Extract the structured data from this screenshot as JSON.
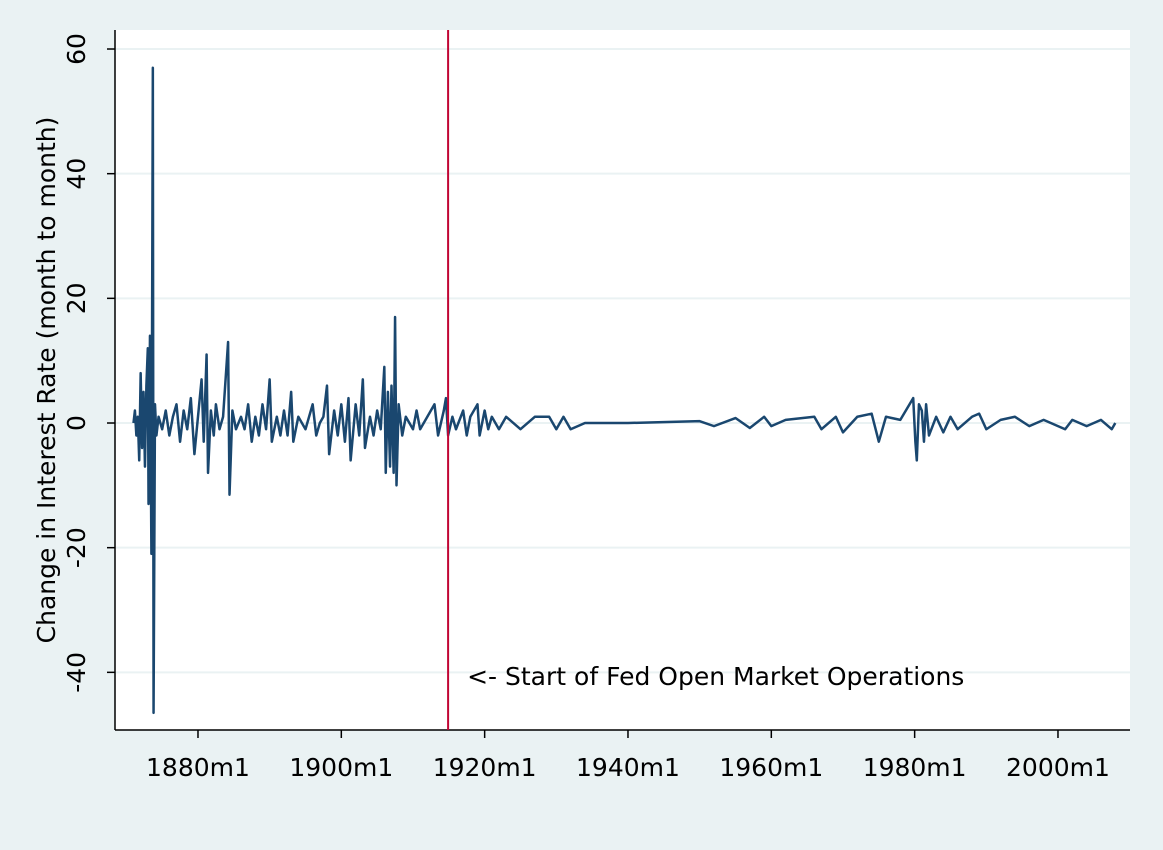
{
  "chart_data": {
    "type": "line",
    "y_label": "Change in Interest Rate (month to month)",
    "annotation": "<- Start of Fed Open Market Operations",
    "xline": 1914.9,
    "xline_color": "#c10534",
    "color": "#1a476f",
    "grid": true,
    "xlim": [
      1868.42,
      2010.05
    ],
    "ylim": [
      -49.25,
      63.05
    ],
    "xticks": [
      {
        "value": 1880,
        "label": "1880m1"
      },
      {
        "value": 1900,
        "label": "1900m1"
      },
      {
        "value": 1920,
        "label": "1920m1"
      },
      {
        "value": 1940,
        "label": "1940m1"
      },
      {
        "value": 1960,
        "label": "1960m1"
      },
      {
        "value": 1980,
        "label": "1980m1"
      },
      {
        "value": 2000,
        "label": "2000m1"
      }
    ],
    "yticks": [
      -40,
      -20,
      0,
      20,
      40,
      60
    ],
    "x": [
      1871.0,
      1871.2,
      1871.4,
      1871.6,
      1871.8,
      1872.0,
      1872.2,
      1872.4,
      1872.6,
      1872.8,
      1873.0,
      1873.1,
      1873.3,
      1873.5,
      1873.7,
      1873.8,
      1874.0,
      1874.2,
      1874.5,
      1875,
      1875.5,
      1876,
      1876.5,
      1877,
      1877.5,
      1878,
      1878.5,
      1879,
      1879.5,
      1880,
      1880.5,
      1880.8,
      1881.2,
      1881.4,
      1881.8,
      1882.2,
      1882.5,
      1883,
      1883.5,
      1884.2,
      1884.4,
      1884.8,
      1885.3,
      1886,
      1886.5,
      1887,
      1887.5,
      1888,
      1888.5,
      1889,
      1889.5,
      1890,
      1890.3,
      1891,
      1891.5,
      1892,
      1892.5,
      1893,
      1893.3,
      1894,
      1895,
      1896,
      1896.5,
      1897,
      1897.5,
      1898,
      1898.3,
      1899,
      1899.5,
      1900,
      1900.5,
      1901,
      1901.3,
      1902,
      1902.5,
      1903,
      1903.3,
      1904,
      1904.5,
      1905,
      1905.5,
      1906,
      1906.2,
      1906.5,
      1906.8,
      1907,
      1907.3,
      1907.5,
      1907.7,
      1908,
      1908.5,
      1909,
      1910,
      1910.5,
      1911,
      1912,
      1913,
      1913.5,
      1914.3,
      1914.6,
      1914.9,
      1915.5,
      1916,
      1917,
      1917.5,
      1918,
      1919,
      1919.3,
      1920,
      1920.5,
      1921,
      1922,
      1923,
      1925,
      1927,
      1929,
      1930,
      1931,
      1932,
      1934,
      1940,
      1950,
      1952,
      1955,
      1957,
      1959,
      1960,
      1962,
      1966,
      1967,
      1969,
      1970,
      1972,
      1974,
      1975,
      1976,
      1978,
      1979.8,
      1980.1,
      1980.3,
      1980.6,
      1981,
      1981.3,
      1981.6,
      1982,
      1983,
      1984,
      1985,
      1986,
      1988,
      1989,
      1990,
      1992,
      1994,
      1996,
      1998,
      2001,
      2002,
      2004,
      2006,
      2007.5,
      2008
    ],
    "values": [
      0,
      2,
      -2,
      1,
      -6,
      8,
      -4,
      5,
      -7,
      6,
      12,
      -13,
      14,
      -21,
      57,
      -46.5,
      3,
      -2,
      1,
      -1,
      2,
      -2,
      1,
      3,
      -3,
      2,
      -1,
      4,
      -5,
      1,
      7,
      -3,
      11,
      -8,
      2,
      -2,
      3,
      -1,
      1,
      13,
      -11.5,
      2,
      -1,
      1,
      -1,
      3,
      -3,
      1,
      -2,
      3,
      -1,
      7,
      -3,
      1,
      -2,
      2,
      -2,
      5,
      -3,
      1,
      -1,
      3,
      -2,
      0,
      1,
      6,
      -5,
      2,
      -2,
      3,
      -3,
      4,
      -6,
      3,
      -2,
      7,
      -4,
      1,
      -2,
      2,
      -1,
      9,
      -8,
      5,
      -7,
      6,
      -8,
      17,
      -10,
      3,
      -2,
      1,
      -1,
      2,
      -1,
      1,
      3,
      -2,
      2,
      4,
      -2,
      1,
      -1,
      2,
      -2,
      1,
      3,
      -2,
      2,
      -1,
      1,
      -1,
      1,
      -1,
      1,
      1,
      -1,
      1,
      -1,
      0,
      0,
      0.3,
      -0.5,
      0.8,
      -0.8,
      1,
      -0.5,
      0.5,
      1,
      -1,
      1,
      -1.5,
      1,
      1.5,
      -3,
      1,
      0.5,
      4,
      -3,
      -6,
      3,
      2,
      -3,
      3,
      -2,
      1,
      -1.5,
      1,
      -1,
      1,
      1.5,
      -1,
      0.5,
      1,
      -0.5,
      0.5,
      -1,
      0.5,
      -0.5,
      0.5,
      -1,
      0
    ]
  }
}
